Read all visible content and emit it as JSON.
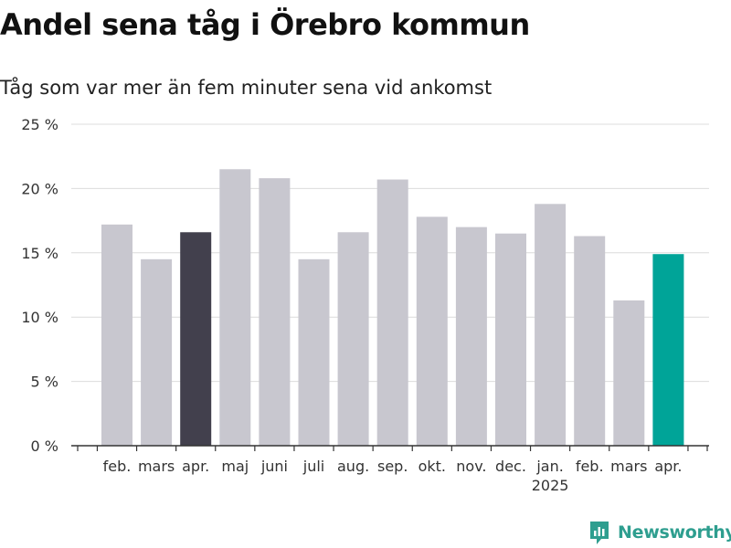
{
  "title": "Andel sena tåg i Örebro kommun",
  "subtitle": "Tåg som var mer än fem minuter sena vid ankomst",
  "brand": "Newsworthy",
  "colors": {
    "default": "#c8c7cf",
    "highlight_dark": "#42404d",
    "highlight_teal": "#00a498",
    "grid": "#dcdcdc",
    "axis": "#333333"
  },
  "chart_data": {
    "type": "bar",
    "categories": [
      "feb.",
      "mars",
      "apr.",
      "maj",
      "juni",
      "juli",
      "aug.",
      "sep.",
      "okt.",
      "nov.",
      "dec.",
      "jan.",
      "feb.",
      "mars",
      "apr."
    ],
    "year_label": "2025",
    "values": [
      17.2,
      14.5,
      16.6,
      21.5,
      20.8,
      14.5,
      16.6,
      20.7,
      17.8,
      17.0,
      16.5,
      18.8,
      16.3,
      11.3,
      14.9
    ],
    "bar_colors": [
      "default",
      "default",
      "highlight_dark",
      "default",
      "default",
      "default",
      "default",
      "default",
      "default",
      "default",
      "default",
      "default",
      "default",
      "default",
      "highlight_teal"
    ],
    "yticks": [
      "0 %",
      "5 %",
      "10 %",
      "15 %",
      "20 %",
      "25 %"
    ],
    "ylim": [
      0,
      25
    ],
    "grid": true,
    "xlabel": "",
    "ylabel": ""
  }
}
